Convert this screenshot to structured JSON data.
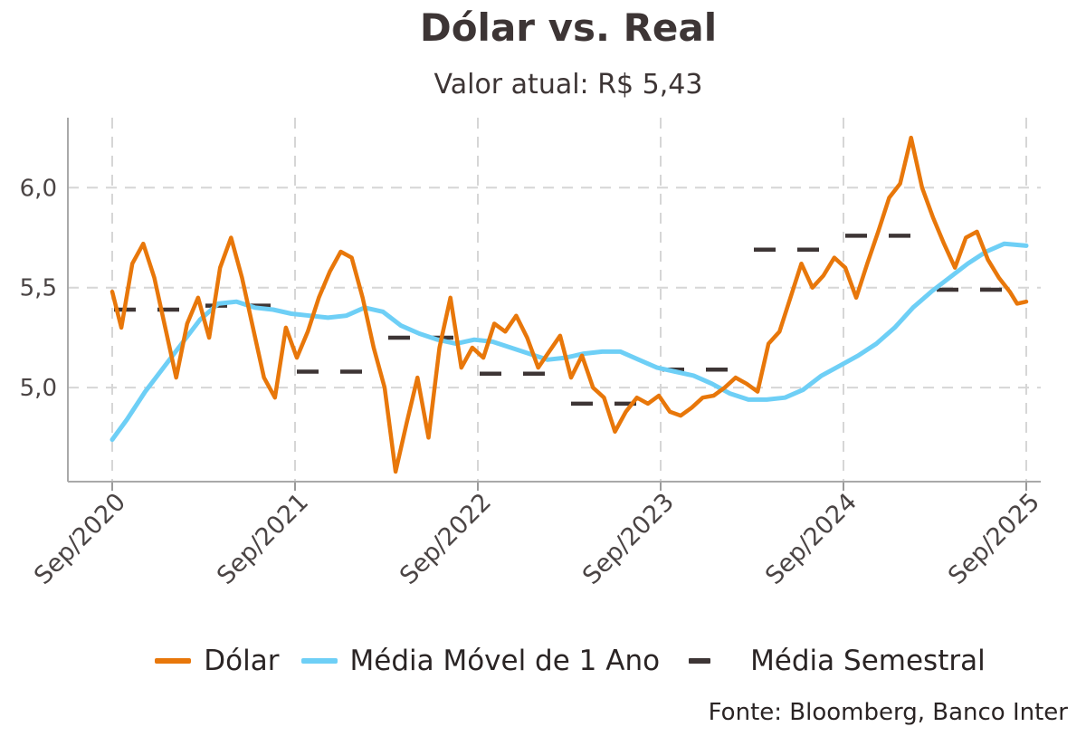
{
  "chart_data": {
    "type": "line",
    "title": "Dólar vs. Real",
    "subtitle": "Valor atual: R$ 5,43",
    "xlabel": "",
    "ylabel": "",
    "x_range": [
      2020.67,
      2025.67
    ],
    "ylim": [
      4.53,
      6.35
    ],
    "y_ticks": [
      5.0,
      5.5,
      6.0
    ],
    "y_tick_labels": [
      "5,0",
      "5,5",
      "6,0"
    ],
    "x_ticks": [
      2020.67,
      2021.67,
      2022.67,
      2023.67,
      2024.67,
      2025.67
    ],
    "x_tick_labels": [
      "Sep/2020",
      "Sep/2021",
      "Sep/2022",
      "Sep/2023",
      "Sep/2024",
      "Sep/2025"
    ],
    "grid": true,
    "legend_position": "bottom",
    "series": [
      {
        "name": "Dólar",
        "color": "#e8770a",
        "style": "line",
        "x": [
          2020.67,
          2020.72,
          2020.78,
          2020.84,
          2020.9,
          2020.96,
          2021.02,
          2021.08,
          2021.14,
          2021.2,
          2021.26,
          2021.32,
          2021.38,
          2021.44,
          2021.5,
          2021.56,
          2021.62,
          2021.68,
          2021.74,
          2021.8,
          2021.86,
          2021.92,
          2021.98,
          2022.04,
          2022.1,
          2022.16,
          2022.22,
          2022.28,
          2022.34,
          2022.4,
          2022.46,
          2022.52,
          2022.58,
          2022.64,
          2022.7,
          2022.76,
          2022.82,
          2022.88,
          2022.94,
          2023.0,
          2023.06,
          2023.12,
          2023.18,
          2023.24,
          2023.3,
          2023.36,
          2023.42,
          2023.48,
          2023.54,
          2023.6,
          2023.66,
          2023.72,
          2023.78,
          2023.84,
          2023.9,
          2023.96,
          2024.02,
          2024.08,
          2024.14,
          2024.2,
          2024.26,
          2024.32,
          2024.38,
          2024.44,
          2024.5,
          2024.56,
          2024.62,
          2024.68,
          2024.74,
          2024.8,
          2024.86,
          2024.92,
          2024.98,
          2025.04,
          2025.1,
          2025.16,
          2025.22,
          2025.28,
          2025.34,
          2025.4,
          2025.46,
          2025.52,
          2025.58,
          2025.62,
          2025.67
        ],
        "values": [
          5.48,
          5.3,
          5.62,
          5.72,
          5.55,
          5.3,
          5.05,
          5.32,
          5.45,
          5.25,
          5.6,
          5.75,
          5.55,
          5.3,
          5.05,
          4.95,
          5.3,
          5.15,
          5.28,
          5.45,
          5.58,
          5.68,
          5.65,
          5.45,
          5.2,
          5.0,
          4.58,
          4.82,
          5.05,
          4.75,
          5.2,
          5.45,
          5.1,
          5.2,
          5.15,
          5.32,
          5.28,
          5.36,
          5.25,
          5.1,
          5.18,
          5.26,
          5.05,
          5.16,
          5.0,
          4.95,
          4.78,
          4.88,
          4.95,
          4.92,
          4.96,
          4.88,
          4.86,
          4.9,
          4.95,
          4.96,
          5.0,
          5.05,
          5.02,
          4.98,
          5.22,
          5.28,
          5.45,
          5.62,
          5.5,
          5.56,
          5.65,
          5.6,
          5.45,
          5.62,
          5.78,
          5.95,
          6.02,
          6.25,
          6.0,
          5.85,
          5.72,
          5.6,
          5.75,
          5.78,
          5.64,
          5.55,
          5.48,
          5.42,
          5.43
        ]
      },
      {
        "name": "Média Móvel de 1 Ano",
        "color": "#6ecff6",
        "style": "line",
        "x": [
          2020.67,
          2020.75,
          2020.85,
          2020.95,
          2021.05,
          2021.15,
          2021.25,
          2021.35,
          2021.45,
          2021.55,
          2021.65,
          2021.75,
          2021.85,
          2021.95,
          2022.05,
          2022.15,
          2022.25,
          2022.35,
          2022.45,
          2022.55,
          2022.65,
          2022.75,
          2022.85,
          2022.95,
          2023.05,
          2023.15,
          2023.25,
          2023.35,
          2023.45,
          2023.55,
          2023.65,
          2023.75,
          2023.85,
          2023.95,
          2024.05,
          2024.15,
          2024.25,
          2024.35,
          2024.45,
          2024.55,
          2024.65,
          2024.75,
          2024.85,
          2024.95,
          2025.05,
          2025.15,
          2025.25,
          2025.35,
          2025.45,
          2025.55,
          2025.67
        ],
        "values": [
          4.74,
          4.84,
          4.98,
          5.1,
          5.22,
          5.34,
          5.42,
          5.43,
          5.4,
          5.39,
          5.37,
          5.36,
          5.35,
          5.36,
          5.4,
          5.38,
          5.31,
          5.27,
          5.24,
          5.22,
          5.24,
          5.23,
          5.2,
          5.17,
          5.14,
          5.15,
          5.17,
          5.18,
          5.18,
          5.14,
          5.1,
          5.08,
          5.06,
          5.02,
          4.97,
          4.94,
          4.94,
          4.95,
          4.99,
          5.06,
          5.11,
          5.16,
          5.22,
          5.3,
          5.4,
          5.48,
          5.55,
          5.62,
          5.68,
          5.72,
          5.71
        ]
      },
      {
        "name": "Média Semestral",
        "color": "#3d3535",
        "style": "dashed-segments",
        "segments": [
          {
            "x_start": 2020.67,
            "x_end": 2021.17,
            "value": 5.39
          },
          {
            "x_start": 2021.17,
            "x_end": 2021.67,
            "value": 5.41
          },
          {
            "x_start": 2021.67,
            "x_end": 2022.17,
            "value": 5.08
          },
          {
            "x_start": 2022.17,
            "x_end": 2022.67,
            "value": 5.25
          },
          {
            "x_start": 2022.67,
            "x_end": 2023.17,
            "value": 5.07
          },
          {
            "x_start": 2023.17,
            "x_end": 2023.67,
            "value": 4.92
          },
          {
            "x_start": 2023.67,
            "x_end": 2024.17,
            "value": 5.09
          },
          {
            "x_start": 2024.17,
            "x_end": 2024.67,
            "value": 5.69
          },
          {
            "x_start": 2024.67,
            "x_end": 2025.17,
            "value": 5.76
          },
          {
            "x_start": 2025.17,
            "x_end": 2025.67,
            "value": 5.49
          }
        ]
      }
    ],
    "source": "Fonte: Bloomberg, Banco Inter"
  },
  "legend": {
    "items": [
      {
        "label": "Dólar",
        "color": "#e8770a"
      },
      {
        "label": "Média Móvel de 1 Ano",
        "color": "#6ecff6"
      },
      {
        "label": "Média Semestral",
        "color": "#3d3535"
      }
    ]
  }
}
